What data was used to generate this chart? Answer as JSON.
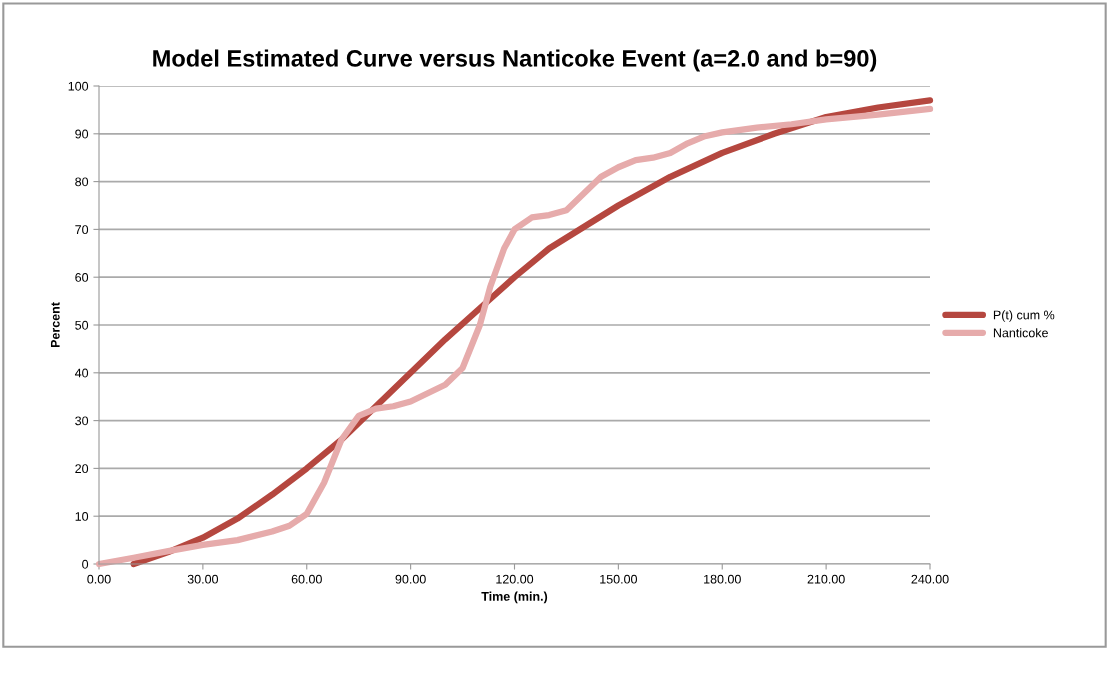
{
  "chart_data": {
    "type": "line",
    "title": "Model Estimated Curve versus Nanticoke Event (a=2.0 and b=90)",
    "xlabel": "Time (min.)",
    "ylabel": "Percent",
    "xlim": [
      0,
      240
    ],
    "xticks": [
      {
        "value": 0,
        "label": "0.00"
      },
      {
        "value": 30,
        "label": "30.00"
      },
      {
        "value": 60,
        "label": "60.00"
      },
      {
        "value": 90,
        "label": "90.00"
      },
      {
        "value": 120,
        "label": "120.00"
      },
      {
        "value": 150,
        "label": "150.00"
      },
      {
        "value": 180,
        "label": "180.00"
      },
      {
        "value": 210,
        "label": "210.00"
      },
      {
        "value": 240,
        "label": "240.00"
      }
    ],
    "ylim": [
      0,
      100
    ],
    "yticks": [
      0,
      10,
      20,
      30,
      40,
      50,
      60,
      70,
      80,
      90,
      100
    ],
    "grid": "y",
    "legend": "right",
    "line_style": "solid",
    "marker": "none",
    "series": [
      {
        "name": "P(t) cum %",
        "color": "#b5473f",
        "x": [
          10,
          20,
          30,
          40,
          50,
          60,
          70,
          80,
          90,
          100,
          110,
          120,
          130,
          150,
          165,
          180,
          195,
          210,
          225,
          240
        ],
        "values": [
          0,
          2.5,
          5.5,
          9.5,
          14.5,
          20,
          26,
          33,
          40,
          47,
          53.5,
          60,
          66,
          75,
          81,
          86,
          90,
          93.5,
          95.5,
          97
        ]
      },
      {
        "name": "Nanticoke",
        "color": "#e6abab",
        "x": [
          0,
          10,
          20,
          30,
          40,
          50,
          55,
          60,
          65,
          70,
          75,
          80,
          85,
          90,
          100,
          105,
          110,
          113,
          117,
          120,
          125,
          130,
          135,
          140,
          145,
          150,
          155,
          160,
          165,
          170,
          175,
          180,
          190,
          200,
          210,
          225,
          240
        ],
        "values": [
          0,
          1.3,
          2.7,
          4,
          5,
          6.8,
          8,
          10.5,
          17,
          26,
          31,
          32.5,
          33,
          34,
          37.5,
          41,
          50,
          58,
          66,
          70,
          72.5,
          73,
          74,
          77.5,
          81,
          83,
          84.5,
          85,
          86,
          88,
          89.5,
          90.3,
          91.3,
          92,
          93,
          94,
          95.2
        ]
      }
    ]
  }
}
